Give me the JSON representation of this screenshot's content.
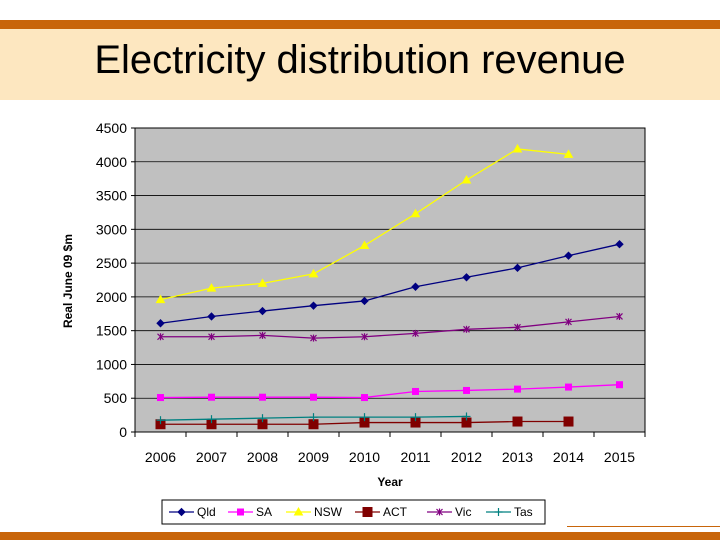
{
  "slide": {
    "title": "Electricity distribution revenue"
  },
  "colors": {
    "accent_bar": "#c8650a",
    "title_band": "#fde7c0",
    "plot_background": "#c0c0c0"
  },
  "chart_data": {
    "type": "line",
    "title": "",
    "xlabel": "Year",
    "ylabel": "Real June 09 $m",
    "x": [
      2006,
      2007,
      2008,
      2009,
      2010,
      2011,
      2012,
      2013,
      2014,
      2015
    ],
    "ylim": [
      0,
      4500
    ],
    "yticks": [
      0,
      500,
      1000,
      1500,
      2000,
      2500,
      3000,
      3500,
      4000,
      4500
    ],
    "grid": "horizontal",
    "legend_position": "bottom",
    "series": [
      {
        "name": "Qld",
        "color": "#000080",
        "marker": "diamond",
        "values": [
          1610,
          1710,
          1790,
          1870,
          1940,
          2150,
          2290,
          2430,
          2610,
          2780
        ]
      },
      {
        "name": "SA",
        "color": "#ff00ff",
        "marker": "square",
        "values": [
          510,
          515,
          515,
          515,
          510,
          600,
          615,
          635,
          665,
          700
        ]
      },
      {
        "name": "NSW",
        "color": "#ffff00",
        "marker": "triangle",
        "values": [
          1960,
          2130,
          2200,
          2340,
          2760,
          3230,
          3730,
          4190,
          4110,
          null
        ]
      },
      {
        "name": "ACT",
        "color": "#800000",
        "marker": "big-square",
        "values": [
          115,
          115,
          115,
          115,
          140,
          140,
          140,
          155,
          155,
          null
        ]
      },
      {
        "name": "Vic",
        "color": "#800080",
        "marker": "star",
        "values": [
          1410,
          1410,
          1430,
          1390,
          1410,
          1460,
          1520,
          1550,
          1630,
          1710
        ]
      },
      {
        "name": "Tas",
        "color": "#008080",
        "marker": "plus",
        "values": [
          175,
          190,
          205,
          220,
          220,
          220,
          230,
          null,
          null,
          null
        ]
      }
    ]
  }
}
